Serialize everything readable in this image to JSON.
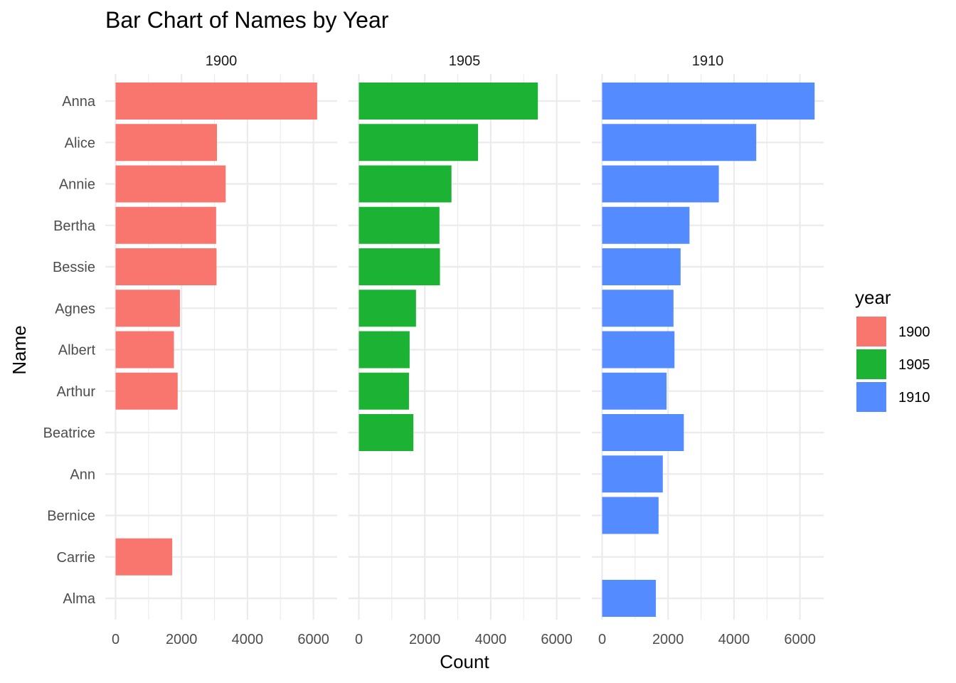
{
  "chart_data": {
    "type": "bar",
    "orientation": "horizontal",
    "title": "Bar Chart of Names by Year",
    "xlabel": "Count",
    "ylabel": "Name",
    "xlim": [
      0,
      6800
    ],
    "x_ticks": [
      0,
      2000,
      4000,
      6000
    ],
    "x_tick_labels": [
      "0",
      "2000",
      "4000",
      "6000"
    ],
    "grid": true,
    "categories": [
      "Anna",
      "Alice",
      "Annie",
      "Bertha",
      "Bessie",
      "Agnes",
      "Albert",
      "Arthur",
      "Beatrice",
      "Ann",
      "Bernice",
      "Carrie",
      "Alma"
    ],
    "facets": [
      {
        "label": "1900",
        "color": "#F8766D",
        "values": [
          6114,
          3075,
          3339,
          3050,
          3062,
          1952,
          1770,
          1883,
          null,
          null,
          null,
          1718,
          null
        ]
      },
      {
        "label": "1905",
        "color": "#1CB335",
        "values": [
          5430,
          3615,
          2809,
          2445,
          2460,
          1733,
          1540,
          1520,
          1655,
          null,
          null,
          null,
          null
        ]
      },
      {
        "label": "1910",
        "color": "#548BFF",
        "values": [
          6445,
          4675,
          3540,
          2650,
          2380,
          2165,
          2195,
          1955,
          2478,
          1840,
          1712,
          null,
          1630
        ]
      }
    ],
    "legend": {
      "title": "year",
      "position": "right",
      "entries": [
        "1900",
        "1905",
        "1910"
      ]
    }
  }
}
